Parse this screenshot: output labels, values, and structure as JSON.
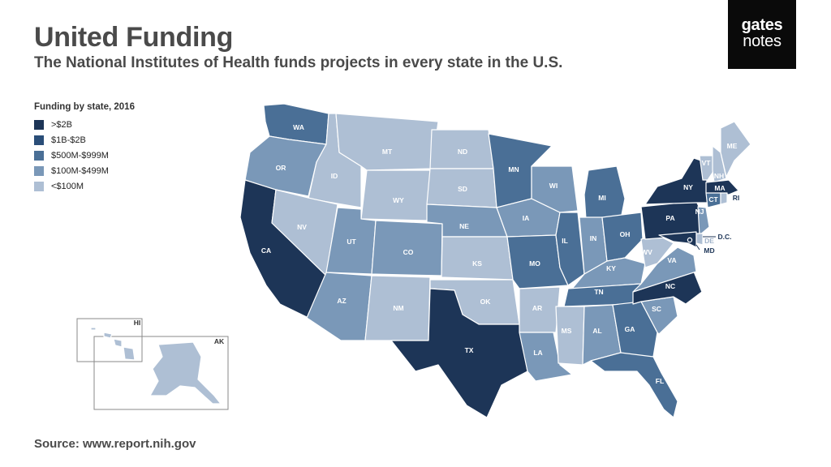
{
  "header": {
    "title": "United Funding",
    "subtitle": "The National Institutes of Health funds projects in every state in the U.S."
  },
  "logo": {
    "line1": "gates",
    "line2": "notes"
  },
  "legend": {
    "title": "Funding by state, 2016",
    "items": [
      {
        "label": ">$2B",
        "color": "#1d3557"
      },
      {
        "label": "$1B-$2B",
        "color": "#2a4e78"
      },
      {
        "label": "$500M-$999M",
        "color": "#4a6f96"
      },
      {
        "label": "$100M-$499M",
        "color": "#7a98b8"
      },
      {
        "label": "<$100M",
        "color": "#aebfd4"
      }
    ]
  },
  "map": {
    "inset_labels": {
      "hi": "HI",
      "ak": "AK"
    },
    "callouts": {
      "dc": "D.C.",
      "md": "MD",
      "de": "DE",
      "ri": "RI",
      "nj": "NJ"
    },
    "states": [
      {
        "id": "WA",
        "label": "WA",
        "tier": 2
      },
      {
        "id": "OR",
        "label": "OR",
        "tier": 3
      },
      {
        "id": "CA",
        "label": "CA",
        "tier": 0
      },
      {
        "id": "ID",
        "label": "ID",
        "tier": 4
      },
      {
        "id": "NV",
        "label": "NV",
        "tier": 4
      },
      {
        "id": "MT",
        "label": "MT",
        "tier": 4
      },
      {
        "id": "WY",
        "label": "WY",
        "tier": 4
      },
      {
        "id": "UT",
        "label": "UT",
        "tier": 3
      },
      {
        "id": "AZ",
        "label": "AZ",
        "tier": 3
      },
      {
        "id": "CO",
        "label": "CO",
        "tier": 3
      },
      {
        "id": "NM",
        "label": "NM",
        "tier": 4
      },
      {
        "id": "ND",
        "label": "ND",
        "tier": 4
      },
      {
        "id": "SD",
        "label": "SD",
        "tier": 4
      },
      {
        "id": "NE",
        "label": "NE",
        "tier": 3
      },
      {
        "id": "KS",
        "label": "KS",
        "tier": 4
      },
      {
        "id": "OK",
        "label": "OK",
        "tier": 4
      },
      {
        "id": "TX",
        "label": "TX",
        "tier": 0
      },
      {
        "id": "MN",
        "label": "MN",
        "tier": 2
      },
      {
        "id": "IA",
        "label": "IA",
        "tier": 3
      },
      {
        "id": "MO",
        "label": "MO",
        "tier": 2
      },
      {
        "id": "AR",
        "label": "AR",
        "tier": 4
      },
      {
        "id": "LA",
        "label": "LA",
        "tier": 3
      },
      {
        "id": "WI",
        "label": "WI",
        "tier": 3
      },
      {
        "id": "IL",
        "label": "IL",
        "tier": 2
      },
      {
        "id": "MI",
        "label": "MI",
        "tier": 2
      },
      {
        "id": "IN",
        "label": "IN",
        "tier": 3
      },
      {
        "id": "OH",
        "label": "OH",
        "tier": 2
      },
      {
        "id": "KY",
        "label": "KY",
        "tier": 3
      },
      {
        "id": "TN",
        "label": "TN",
        "tier": 2
      },
      {
        "id": "MS",
        "label": "MS",
        "tier": 4
      },
      {
        "id": "AL",
        "label": "AL",
        "tier": 3
      },
      {
        "id": "GA",
        "label": "GA",
        "tier": 2
      },
      {
        "id": "FL",
        "label": "FL",
        "tier": 2
      },
      {
        "id": "SC",
        "label": "SC",
        "tier": 3
      },
      {
        "id": "NC",
        "label": "NC",
        "tier": 0
      },
      {
        "id": "VA",
        "label": "VA",
        "tier": 3
      },
      {
        "id": "WV",
        "label": "WV",
        "tier": 4
      },
      {
        "id": "PA",
        "label": "PA",
        "tier": 0
      },
      {
        "id": "NY",
        "label": "NY",
        "tier": 0
      },
      {
        "id": "VT",
        "label": "VT",
        "tier": 4
      },
      {
        "id": "NH",
        "label": "NH",
        "tier": 4
      },
      {
        "id": "ME",
        "label": "ME",
        "tier": 4
      },
      {
        "id": "MA",
        "label": "MA",
        "tier": 0
      },
      {
        "id": "CT",
        "label": "CT",
        "tier": 2
      },
      {
        "id": "RI",
        "label": "RI",
        "tier": 4
      },
      {
        "id": "NJ",
        "label": "NJ",
        "tier": 3
      },
      {
        "id": "DE",
        "label": "DE",
        "tier": 4
      },
      {
        "id": "MD",
        "label": "MD",
        "tier": 0
      },
      {
        "id": "DC",
        "label": "D.C.",
        "tier": 0
      },
      {
        "id": "AK",
        "label": "AK",
        "tier": 4
      },
      {
        "id": "HI",
        "label": "HI",
        "tier": 4
      }
    ]
  },
  "footer": {
    "source": "Source: www.report.nih.gov"
  }
}
